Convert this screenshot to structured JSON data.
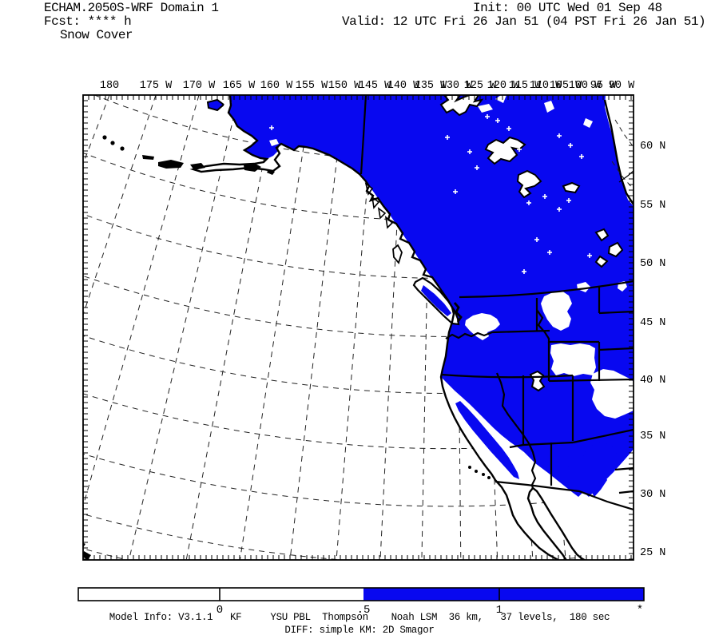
{
  "header": {
    "title": "ECHAM.2050S-WRF Domain 1",
    "forecast": "Fcst: **** h",
    "field": "Snow Cover",
    "init": "Init: 00 UTC Wed 01 Sep 48",
    "valid": "Valid: 12 UTC Fri 26 Jan 51 (04 PST Fri 26 Jan 51)"
  },
  "map": {
    "top_axis_labels": [
      "180",
      "175 W",
      "170 W",
      "165 W",
      "160 W",
      "155 W",
      "150 W",
      "145 W",
      "140 W",
      "135 W",
      "130 W",
      "125 W",
      "120 W",
      "115 W",
      "110 W",
      "105 W",
      "100 W",
      "95 W",
      "90 W"
    ],
    "right_axis_labels": [
      "60 N",
      "55 N",
      "50 N",
      "45 N",
      "40 N",
      "35 N",
      "30 N",
      "25 N"
    ]
  },
  "colorbar": {
    "tick_labels": [
      "0",
      ".5",
      "1",
      "*"
    ],
    "threshold": ".5"
  },
  "footer": {
    "model_info": "Model Info: V3.1.1   KF     YSU PBL  Thompson    Noah LSM  36 km,   37 levels,  180 sec",
    "diff": "DIFF: simple KM: 2D Smagor"
  },
  "colors": {
    "snow": "#0808f0",
    "land": "#ffffff",
    "outline": "#000000"
  },
  "chart_data": {
    "type": "map",
    "field": "Snow Cover",
    "colorbar": {
      "breaks": [
        0,
        0.5,
        1
      ],
      "colors": [
        "#ffffff",
        "#0808f0"
      ],
      "max_marker": "*"
    },
    "snow_covered_regions": "Alaska mainland, most of Canada, Pacific Northwest, Rockies (MT, ID, WY fringes, UT, NV, W CO), Sierra Nevada, NM highlands",
    "snow_free_regions": "Pacific Ocean, Bering Sea, coastal CA, SW deserts (S CA, AZ, S NV), E Wyoming, E Colorado plains, Columbia Basin, central Montana, Hudson Bay corner"
  }
}
